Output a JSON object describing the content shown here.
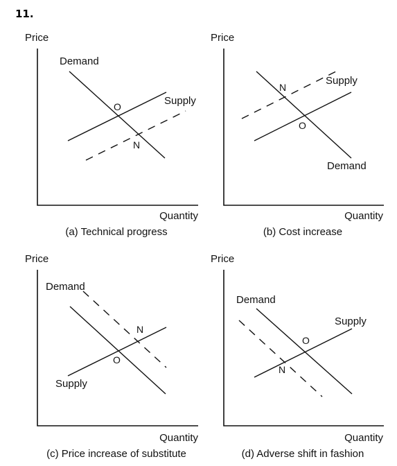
{
  "question_number": "11.",
  "panels": [
    {
      "caption": "(a) Technical progress",
      "y_axis_label": "Price",
      "x_axis_label": "Quantity",
      "curve_labels": {
        "demand": "Demand",
        "supply": "Supply"
      },
      "point_labels": {
        "original": "O",
        "new": "N"
      }
    },
    {
      "caption": "(b) Cost increase",
      "y_axis_label": "Price",
      "x_axis_label": "Quantity",
      "curve_labels": {
        "demand": "Demand",
        "supply": "Supply"
      },
      "point_labels": {
        "original": "O",
        "new": "N"
      }
    },
    {
      "caption": "(c) Price increase of substitute",
      "y_axis_label": "Price",
      "x_axis_label": "Quantity",
      "curve_labels": {
        "demand": "Demand",
        "supply": "Supply"
      },
      "point_labels": {
        "original": "O",
        "new": "N"
      }
    },
    {
      "caption": "(d) Adverse shift in fashion",
      "y_axis_label": "Price",
      "x_axis_label": "Quantity",
      "curve_labels": {
        "demand": "Demand",
        "supply": "Supply"
      },
      "point_labels": {
        "original": "O",
        "new": "N"
      }
    }
  ]
}
